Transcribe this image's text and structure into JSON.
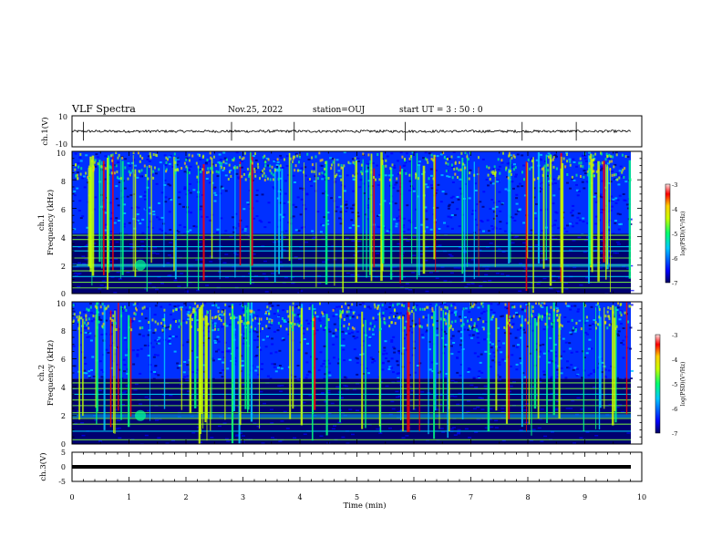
{
  "header": {
    "title": "VLF Spectra",
    "date": "Nov.25, 2022",
    "station": "station=OUJ",
    "start": "start UT = 3 : 50 : 0"
  },
  "colors": {
    "colormap": [
      "#000080",
      "#0000ff",
      "#00c8ff",
      "#00ff80",
      "#c8ff00",
      "#ffd000",
      "#ff0000",
      "#ffc0c0"
    ],
    "trace": "#000000"
  },
  "chart_data": [
    {
      "type": "line",
      "panel": "ch1",
      "ylabel": "ch.1(V)",
      "ylim": [
        -10,
        10
      ],
      "y_ticks": [
        "10",
        "-10"
      ],
      "description_of_series": "waveform amplitude, baseline near 0 V with short spikes",
      "baseline": 0,
      "spikes_at_min": [
        0.2,
        2.8,
        3.9,
        5.85,
        7.9,
        8.85
      ],
      "xlim": [
        0,
        10
      ]
    },
    {
      "type": "heatmap",
      "panel": "ch1",
      "ylabel": "Frequency (kHz)",
      "channel_label": "ch.1",
      "ylim": [
        0,
        10
      ],
      "y_ticks": [
        "0",
        "2",
        "4",
        "6",
        "8",
        "10"
      ],
      "xlim": [
        0,
        10
      ],
      "colorbar": {
        "label": "log(PSD)(V²/Hz)",
        "range": [
          -7,
          -3
        ],
        "ticks": [
          "-3",
          "-4",
          "-5",
          "-6",
          "-7"
        ]
      },
      "band_boundary_khz": 4.2,
      "horizontal_lines_khz": [
        0.4,
        0.8,
        1.2,
        1.6,
        2.0,
        2.5,
        3.0,
        3.3,
        3.8,
        4.1
      ],
      "sferic_density": 90
    },
    {
      "type": "heatmap",
      "panel": "ch2",
      "ylabel": "Frequency (kHz)",
      "channel_label": "ch.2",
      "ylim": [
        0,
        10
      ],
      "y_ticks": [
        "0",
        "2",
        "4",
        "6",
        "8",
        "10"
      ],
      "xlim": [
        0,
        10
      ],
      "colorbar": {
        "label": "log(PSD)(V²/Hz)",
        "range": [
          -7,
          -3
        ],
        "ticks": [
          "-3",
          "-4",
          "-5",
          "-6",
          "-7"
        ]
      },
      "band_boundary_khz": 4.6,
      "horizontal_lines_khz": [
        0.3,
        0.9,
        1.4,
        1.8,
        2.2,
        2.7,
        3.1,
        3.5,
        3.9,
        4.3
      ],
      "sferic_density": 90
    },
    {
      "type": "line",
      "panel": "ch3",
      "ylabel": "ch.3(V)",
      "ylim": [
        -5,
        5
      ],
      "y_ticks": [
        "5",
        "0",
        "-5"
      ],
      "baseline": 0,
      "xlim": [
        0,
        10
      ],
      "xlabel": "Time (min)",
      "x_ticks": [
        "0",
        "1",
        "2",
        "3",
        "4",
        "5",
        "6",
        "7",
        "8",
        "9",
        "10"
      ]
    }
  ]
}
